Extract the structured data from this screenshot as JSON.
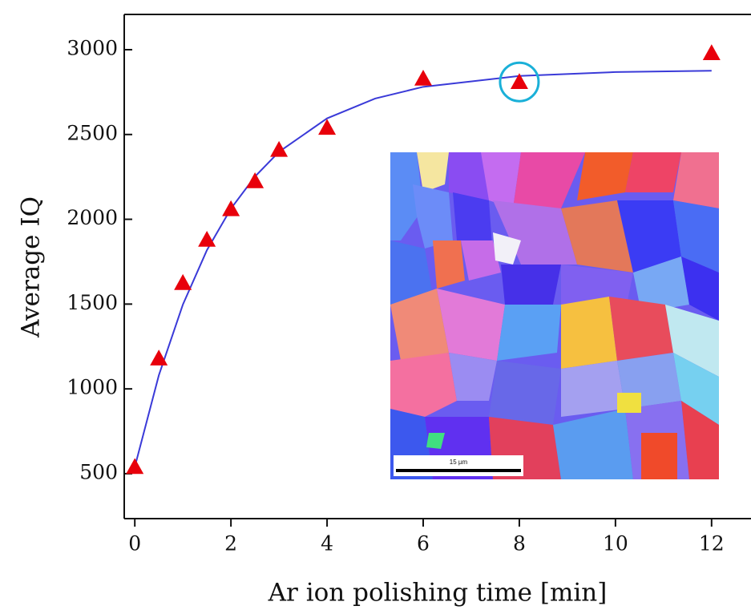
{
  "chart_data": {
    "type": "scatter",
    "x_label": "Ar ion polishing time [min]",
    "y_label": "Average IQ",
    "xlim": [
      -0.22,
      12.82
    ],
    "ylim": [
      235,
      3208
    ],
    "xticks": [
      0,
      2,
      4,
      6,
      8,
      10,
      12
    ],
    "yticks": [
      500,
      1000,
      1500,
      2000,
      2500,
      3000
    ],
    "series": [
      {
        "type": "scatter",
        "marker": "triangle",
        "color": "#e8000b",
        "x": [
          0,
          0.5,
          1,
          1.5,
          2,
          2.5,
          3,
          4,
          6,
          8,
          12
        ],
        "values": [
          540,
          1180,
          1625,
          1880,
          2060,
          2225,
          2410,
          2540,
          2830,
          2810,
          2980
        ]
      },
      {
        "type": "line",
        "color": "#3a3ad8",
        "x": [
          0,
          0.5,
          1,
          1.5,
          2,
          2.5,
          3,
          4,
          5,
          6,
          8,
          10,
          12
        ],
        "values": [
          540,
          1080,
          1497,
          1818,
          2063,
          2252,
          2398,
          2595,
          2712,
          2781,
          2845,
          2868,
          2876
        ]
      }
    ],
    "highlight": {
      "series": 0,
      "index": 9,
      "color": "#1ab0d8"
    },
    "inset": {
      "scale_bar_label": "15 µm"
    }
  }
}
